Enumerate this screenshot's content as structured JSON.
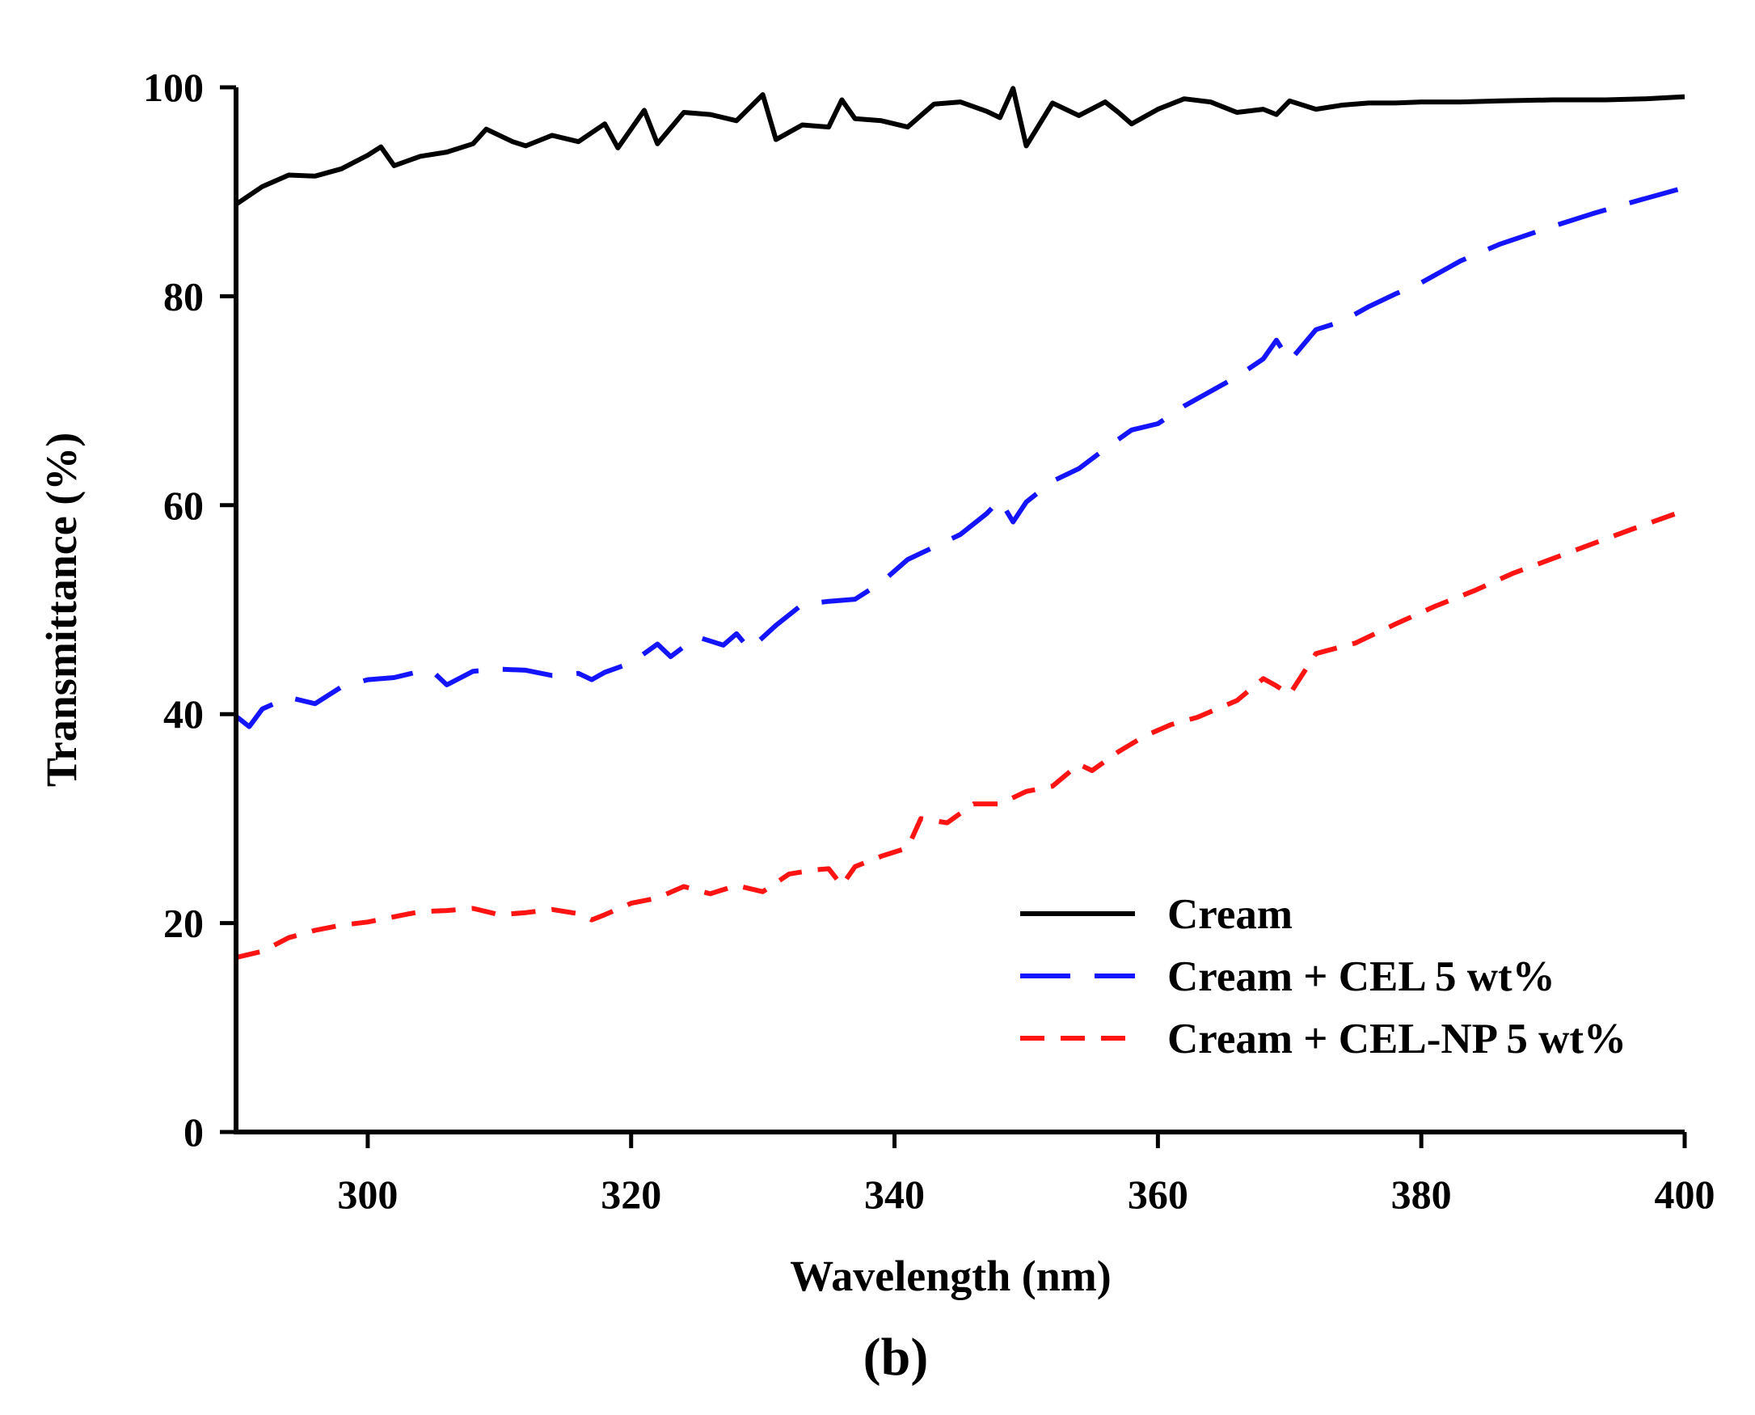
{
  "panel_label": "(b)",
  "chart_data": {
    "type": "line",
    "title": "",
    "xlabel": "Wavelength (nm)",
    "ylabel": "Transmittance (%)",
    "xlim": [
      290,
      400
    ],
    "ylim": [
      0,
      100
    ],
    "xticks": [
      300,
      320,
      340,
      360,
      380,
      400
    ],
    "yticks": [
      0,
      20,
      40,
      60,
      80,
      100
    ],
    "x_tick_labels": [
      "300",
      "320",
      "340",
      "360",
      "380",
      "400"
    ],
    "y_tick_labels": [
      "0",
      "20",
      "40",
      "60",
      "80",
      "100"
    ],
    "grid": false,
    "legend_position": "bottom-right",
    "series": [
      {
        "name": "Cream",
        "color": "#000000",
        "style": "solid",
        "x": [
          290,
          292,
          294,
          296,
          298,
          300,
          301,
          302,
          304,
          306,
          308,
          309,
          311,
          312,
          314,
          316,
          318,
          319,
          321,
          322,
          324,
          326,
          328,
          330,
          331,
          333,
          335,
          336,
          337,
          339,
          341,
          343,
          345,
          347,
          348,
          349,
          350,
          352,
          354,
          356,
          357,
          358,
          360,
          362,
          364,
          366,
          368,
          369,
          370,
          372,
          374,
          376,
          378,
          380,
          383,
          386,
          390,
          394,
          397,
          400
        ],
        "values": [
          88.8,
          90.5,
          91.6,
          91.5,
          92.2,
          93.5,
          94.3,
          92.5,
          93.4,
          93.8,
          94.6,
          96.0,
          94.8,
          94.4,
          95.4,
          94.8,
          96.5,
          94.2,
          97.8,
          94.6,
          97.6,
          97.4,
          96.8,
          99.3,
          95.0,
          96.4,
          96.2,
          98.8,
          97.0,
          96.8,
          96.2,
          98.4,
          98.6,
          97.7,
          97.1,
          99.9,
          94.4,
          98.5,
          97.3,
          98.6,
          97.6,
          96.5,
          97.9,
          98.9,
          98.6,
          97.6,
          97.9,
          97.4,
          98.7,
          97.9,
          98.3,
          98.5,
          98.5,
          98.6,
          98.6,
          98.7,
          98.8,
          98.8,
          98.9,
          99.1
        ]
      },
      {
        "name": "Cream + CEL 5 wt%",
        "color": "#1414ff",
        "style": "long-dash",
        "x": [
          290,
          291,
          292,
          294,
          296,
          298,
          300,
          302,
          304,
          305,
          306,
          308,
          310,
          312,
          314,
          316,
          317,
          318,
          320,
          322,
          323,
          325,
          327,
          328,
          329,
          331,
          333,
          335,
          337,
          339,
          341,
          343,
          345,
          347,
          348,
          349,
          350,
          352,
          354,
          356,
          358,
          360,
          362,
          364,
          366,
          368,
          369,
          370,
          372,
          374,
          376,
          378,
          380,
          383,
          386,
          390,
          393,
          396,
          400
        ],
        "values": [
          39.8,
          38.8,
          40.5,
          41.6,
          41.0,
          42.6,
          43.3,
          43.5,
          44.1,
          44.0,
          42.8,
          44.1,
          44.3,
          44.2,
          43.7,
          43.9,
          43.3,
          44.0,
          44.9,
          46.7,
          45.5,
          47.4,
          46.6,
          47.7,
          46.2,
          48.5,
          50.5,
          50.8,
          51.0,
          52.6,
          54.8,
          56.0,
          57.2,
          59.2,
          60.5,
          58.4,
          60.3,
          62.3,
          63.5,
          65.4,
          67.2,
          67.8,
          69.5,
          70.9,
          72.3,
          74.0,
          75.8,
          73.8,
          76.8,
          77.6,
          79.0,
          80.2,
          81.3,
          83.4,
          85.0,
          86.7,
          87.9,
          89.0,
          90.4
        ]
      },
      {
        "name": "Cream + CEL-NP 5 wt%",
        "color": "#ff1414",
        "style": "short-dash",
        "x": [
          290,
          292,
          294,
          296,
          298,
          300,
          302,
          304,
          306,
          308,
          310,
          312,
          314,
          316,
          317,
          318,
          320,
          322,
          324,
          326,
          328,
          330,
          332,
          334,
          335,
          336,
          337,
          339,
          341,
          342,
          344,
          346,
          348,
          350,
          352,
          354,
          355,
          357,
          359,
          361,
          363,
          366,
          368,
          369,
          370,
          372,
          375,
          378,
          381,
          384,
          387,
          390,
          393,
          396,
          400
        ],
        "values": [
          16.7,
          17.3,
          18.6,
          19.3,
          19.8,
          20.1,
          20.6,
          21.1,
          21.2,
          21.4,
          20.8,
          21.0,
          21.3,
          20.9,
          20.3,
          20.8,
          21.9,
          22.4,
          23.5,
          22.8,
          23.6,
          23.0,
          24.7,
          25.1,
          25.2,
          23.6,
          25.4,
          26.4,
          27.2,
          30.0,
          29.6,
          31.4,
          31.4,
          32.6,
          33.1,
          35.2,
          34.6,
          36.4,
          37.9,
          39.0,
          39.7,
          41.3,
          43.4,
          42.7,
          41.9,
          45.8,
          46.8,
          48.6,
          50.3,
          51.8,
          53.5,
          54.9,
          56.3,
          57.7,
          59.5
        ]
      }
    ]
  }
}
